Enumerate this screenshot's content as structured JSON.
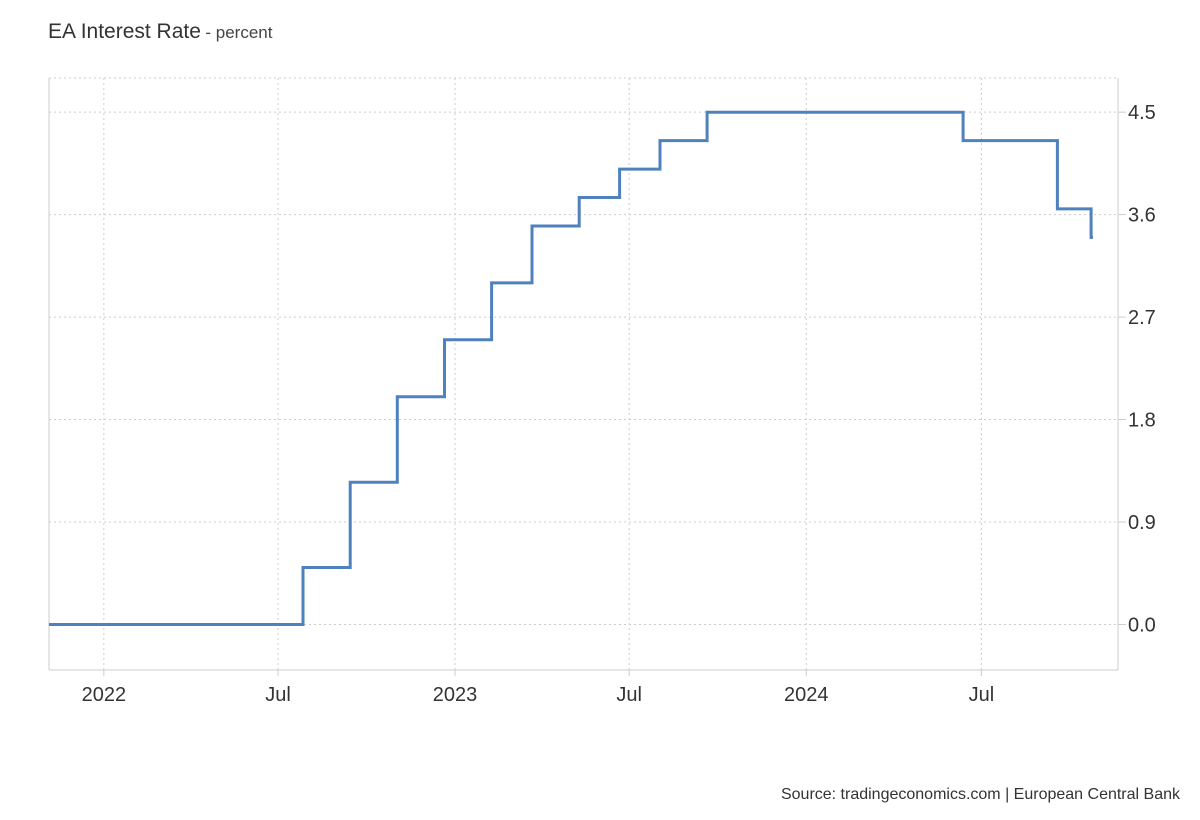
{
  "header": {
    "title": "EA Interest Rate",
    "subtitle": "- percent"
  },
  "footer": {
    "source": "Source: tradingeconomics.com | European Central Bank"
  },
  "chart_data": {
    "type": "line",
    "step": "after",
    "title": "EA Interest Rate",
    "subtitle": "percent",
    "xlabel": "",
    "ylabel": "",
    "ylim": [
      -0.4,
      4.8
    ],
    "xlim": [
      "2021-11-05",
      "2024-11-20"
    ],
    "y_ticks": [
      0.0,
      0.9,
      1.8,
      2.7,
      3.6,
      4.5
    ],
    "y_tick_labels": [
      "0.0",
      "0.9",
      "1.8",
      "2.7",
      "3.6",
      "4.5"
    ],
    "x_ticks": [
      {
        "date": "2022-01-01",
        "label": "2022"
      },
      {
        "date": "2022-07-01",
        "label": "Jul"
      },
      {
        "date": "2023-01-01",
        "label": "2023"
      },
      {
        "date": "2023-07-01",
        "label": "Jul"
      },
      {
        "date": "2024-01-01",
        "label": "2024"
      },
      {
        "date": "2024-07-01",
        "label": "Jul"
      }
    ],
    "grid": true,
    "y_axis_position": "right",
    "line_color": "#4f81bd",
    "series": [
      {
        "points": [
          {
            "x": "2021-11-05",
            "y": 0.0
          },
          {
            "x": "2022-07-27",
            "y": 0.5
          },
          {
            "x": "2022-09-14",
            "y": 1.25
          },
          {
            "x": "2022-11-02",
            "y": 2.0
          },
          {
            "x": "2022-12-21",
            "y": 2.5
          },
          {
            "x": "2023-02-08",
            "y": 3.0
          },
          {
            "x": "2023-03-22",
            "y": 3.5
          },
          {
            "x": "2023-05-10",
            "y": 3.75
          },
          {
            "x": "2023-06-21",
            "y": 4.0
          },
          {
            "x": "2023-08-02",
            "y": 4.25
          },
          {
            "x": "2023-09-20",
            "y": 4.5
          },
          {
            "x": "2024-06-12",
            "y": 4.25
          },
          {
            "x": "2024-09-18",
            "y": 3.65
          },
          {
            "x": "2024-10-23",
            "y": 3.4
          },
          {
            "x": "2024-10-25",
            "y": 3.4
          }
        ]
      }
    ]
  }
}
